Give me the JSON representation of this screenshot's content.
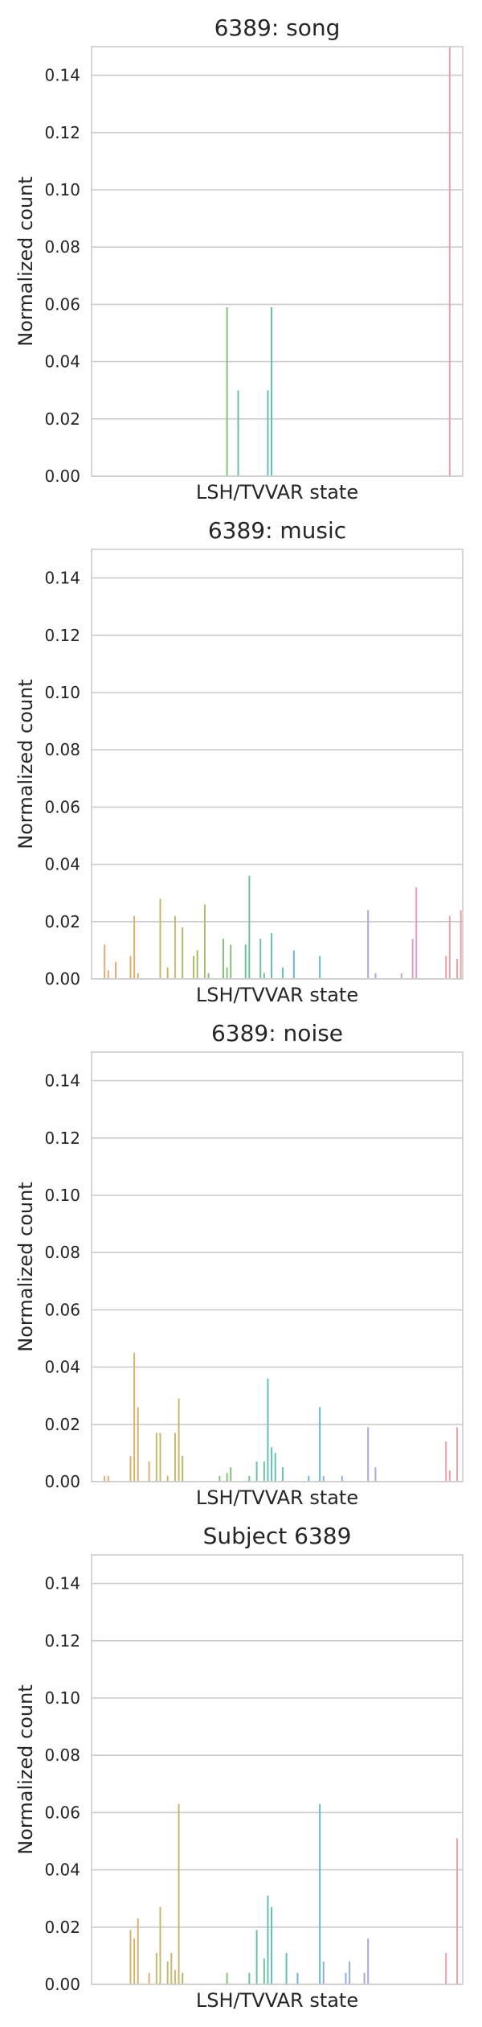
{
  "chart_data": [
    {
      "type": "bar",
      "title": "6389: song",
      "xlabel": "LSH/TVVAR state",
      "ylabel": "Normalized count",
      "ylim": [
        0,
        0.15
      ],
      "yticks": [
        "0.00",
        "0.02",
        "0.04",
        "0.06",
        "0.08",
        "0.10",
        "0.12",
        "0.14"
      ],
      "grid": "horizontal",
      "n_states": 100,
      "bars": [
        {
          "state": 37,
          "value": 0.059
        },
        {
          "state": 40,
          "value": 0.03
        },
        {
          "state": 48,
          "value": 0.03
        },
        {
          "state": 49,
          "value": 0.059
        },
        {
          "state": 97,
          "value": 0.15
        }
      ]
    },
    {
      "type": "bar",
      "title": "6389: music",
      "xlabel": "LSH/TVVAR state",
      "ylabel": "Normalized count",
      "ylim": [
        0,
        0.15
      ],
      "yticks": [
        "0.00",
        "0.02",
        "0.04",
        "0.06",
        "0.08",
        "0.10",
        "0.12",
        "0.14"
      ],
      "grid": "horizontal",
      "n_states": 100,
      "bars": [
        {
          "state": 4,
          "value": 0.012
        },
        {
          "state": 5,
          "value": 0.003
        },
        {
          "state": 7,
          "value": 0.006
        },
        {
          "state": 11,
          "value": 0.008
        },
        {
          "state": 12,
          "value": 0.022
        },
        {
          "state": 13,
          "value": 0.002
        },
        {
          "state": 19,
          "value": 0.028
        },
        {
          "state": 21,
          "value": 0.004
        },
        {
          "state": 23,
          "value": 0.022
        },
        {
          "state": 25,
          "value": 0.018
        },
        {
          "state": 28,
          "value": 0.008
        },
        {
          "state": 29,
          "value": 0.01
        },
        {
          "state": 31,
          "value": 0.026
        },
        {
          "state": 32,
          "value": 0.002
        },
        {
          "state": 36,
          "value": 0.014
        },
        {
          "state": 38,
          "value": 0.012
        },
        {
          "state": 37,
          "value": 0.004
        },
        {
          "state": 43,
          "value": 0.036
        },
        {
          "state": 42,
          "value": 0.012
        },
        {
          "state": 46,
          "value": 0.014
        },
        {
          "state": 47,
          "value": 0.002
        },
        {
          "state": 49,
          "value": 0.016
        },
        {
          "state": 52,
          "value": 0.004
        },
        {
          "state": 55,
          "value": 0.01
        },
        {
          "state": 62,
          "value": 0.008
        },
        {
          "state": 75,
          "value": 0.024
        },
        {
          "state": 77,
          "value": 0.002
        },
        {
          "state": 84,
          "value": 0.002
        },
        {
          "state": 87,
          "value": 0.014
        },
        {
          "state": 88,
          "value": 0.032
        },
        {
          "state": 96,
          "value": 0.008
        },
        {
          "state": 97,
          "value": 0.022
        },
        {
          "state": 99,
          "value": 0.007
        },
        {
          "state": 100,
          "value": 0.024
        }
      ]
    },
    {
      "type": "bar",
      "title": "6389: noise",
      "xlabel": "LSH/TVVAR state",
      "ylabel": "Normalized count",
      "ylim": [
        0,
        0.15
      ],
      "yticks": [
        "0.00",
        "0.02",
        "0.04",
        "0.06",
        "0.08",
        "0.10",
        "0.12",
        "0.14"
      ],
      "grid": "horizontal",
      "n_states": 100,
      "bars": [
        {
          "state": 4,
          "value": 0.002
        },
        {
          "state": 5,
          "value": 0.002
        },
        {
          "state": 11,
          "value": 0.009
        },
        {
          "state": 12,
          "value": 0.045
        },
        {
          "state": 13,
          "value": 0.026
        },
        {
          "state": 16,
          "value": 0.007
        },
        {
          "state": 18,
          "value": 0.017
        },
        {
          "state": 19,
          "value": 0.017
        },
        {
          "state": 21,
          "value": 0.002
        },
        {
          "state": 23,
          "value": 0.017
        },
        {
          "state": 24,
          "value": 0.029
        },
        {
          "state": 25,
          "value": 0.009
        },
        {
          "state": 35,
          "value": 0.002
        },
        {
          "state": 37,
          "value": 0.003
        },
        {
          "state": 38,
          "value": 0.005
        },
        {
          "state": 43,
          "value": 0.002
        },
        {
          "state": 45,
          "value": 0.007
        },
        {
          "state": 47,
          "value": 0.007
        },
        {
          "state": 48,
          "value": 0.036
        },
        {
          "state": 49,
          "value": 0.012
        },
        {
          "state": 50,
          "value": 0.01
        },
        {
          "state": 52,
          "value": 0.005
        },
        {
          "state": 59,
          "value": 0.002
        },
        {
          "state": 62,
          "value": 0.026
        },
        {
          "state": 63,
          "value": 0.002
        },
        {
          "state": 68,
          "value": 0.002
        },
        {
          "state": 75,
          "value": 0.019
        },
        {
          "state": 77,
          "value": 0.005
        },
        {
          "state": 96,
          "value": 0.014
        },
        {
          "state": 97,
          "value": 0.004
        },
        {
          "state": 99,
          "value": 0.019
        }
      ]
    },
    {
      "type": "bar",
      "title": "Subject 6389",
      "xlabel": "LSH/TVVAR state",
      "ylabel": "Normalized count",
      "ylim": [
        0,
        0.15
      ],
      "yticks": [
        "0.00",
        "0.02",
        "0.04",
        "0.06",
        "0.08",
        "0.10",
        "0.12",
        "0.14"
      ],
      "grid": "horizontal",
      "n_states": 100,
      "bars": [
        {
          "state": 11,
          "value": 0.019
        },
        {
          "state": 12,
          "value": 0.016
        },
        {
          "state": 13,
          "value": 0.023
        },
        {
          "state": 16,
          "value": 0.004
        },
        {
          "state": 18,
          "value": 0.011
        },
        {
          "state": 19,
          "value": 0.027
        },
        {
          "state": 21,
          "value": 0.008
        },
        {
          "state": 22,
          "value": 0.011
        },
        {
          "state": 23,
          "value": 0.005
        },
        {
          "state": 24,
          "value": 0.063
        },
        {
          "state": 25,
          "value": 0.004
        },
        {
          "state": 37,
          "value": 0.004
        },
        {
          "state": 43,
          "value": 0.004
        },
        {
          "state": 45,
          "value": 0.019
        },
        {
          "state": 47,
          "value": 0.009
        },
        {
          "state": 48,
          "value": 0.031
        },
        {
          "state": 49,
          "value": 0.027
        },
        {
          "state": 53,
          "value": 0.011
        },
        {
          "state": 56,
          "value": 0.004
        },
        {
          "state": 62,
          "value": 0.063
        },
        {
          "state": 63,
          "value": 0.008
        },
        {
          "state": 69,
          "value": 0.004
        },
        {
          "state": 70,
          "value": 0.008
        },
        {
          "state": 74,
          "value": 0.004
        },
        {
          "state": 75,
          "value": 0.016
        },
        {
          "state": 96,
          "value": 0.011
        },
        {
          "state": 99,
          "value": 0.051
        }
      ]
    }
  ],
  "palette": [
    "#e7a97a",
    "#d9b36a",
    "#c9b86c",
    "#a9bd6a",
    "#85c17a",
    "#6cc39a",
    "#63c2b4",
    "#6ab8cc",
    "#8eaee0",
    "#b3a3e6",
    "#d49ddc",
    "#e79cc4",
    "#e9a0a8"
  ]
}
